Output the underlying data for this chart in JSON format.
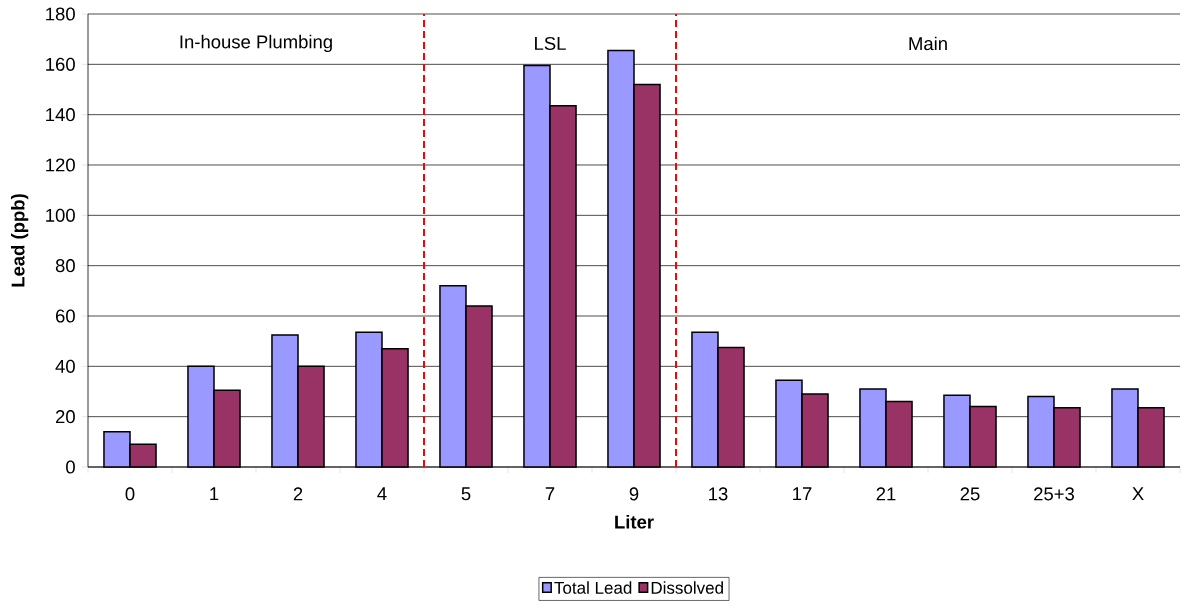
{
  "chart_data": {
    "type": "bar",
    "xlabel": "Liter",
    "ylabel": "Lead (ppb)",
    "categories": [
      "0",
      "1",
      "2",
      "4",
      "5",
      "7",
      "9",
      "13",
      "17",
      "21",
      "25",
      "25+3",
      "X"
    ],
    "series": [
      {
        "name": "Total Lead",
        "color": "#9999ff",
        "values": [
          14,
          40,
          52.5,
          53.5,
          72,
          159.5,
          165.5,
          53.5,
          34.5,
          31,
          28.5,
          28,
          31
        ]
      },
      {
        "name": "Dissolved",
        "color": "#993366",
        "values": [
          9,
          30.5,
          40,
          47,
          64,
          143.5,
          152,
          47.5,
          29,
          26,
          24,
          23.5,
          23.5
        ]
      }
    ],
    "ylim": [
      0,
      180
    ],
    "yticks": [
      0,
      20,
      40,
      60,
      80,
      100,
      120,
      140,
      160,
      180
    ],
    "grid": "y",
    "legend": "bottom",
    "annotations": [
      "In-house Plumbing",
      "LSL",
      "Main"
    ]
  }
}
